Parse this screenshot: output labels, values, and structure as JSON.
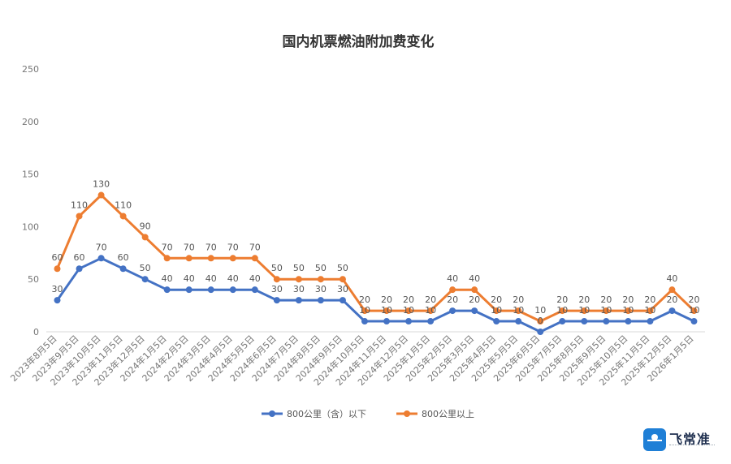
{
  "chart_data": {
    "type": "line",
    "title": "国内机票燃油附加费变化",
    "categories": [
      "2023年8月5日",
      "2023年9月5日",
      "2023年10月5日",
      "2023年11月5日",
      "2023年12月5日",
      "2024年1月5日",
      "2024年2月5日",
      "2024年3月5日",
      "2024年4月5日",
      "2024年5月5日",
      "2024年6月5日",
      "2024年7月5日",
      "2024年8月5日",
      "2024年9月5日",
      "2024年10月5日",
      "2024年11月5日",
      "2024年12月5日",
      "2025年1月5日",
      "2025年2月5日",
      "2025年3月5日",
      "2025年4月5日",
      "2025年5月5日",
      "2025年6月5日",
      "2025年7月5日",
      "2025年8月5日",
      "2025年9月5日",
      "2025年10月5日",
      "2025年11月5日",
      "2025年12月5日",
      "2026年1月5日"
    ],
    "series": [
      {
        "name": "800公里（含）以下",
        "color": "#4472c4",
        "values": [
          30,
          60,
          70,
          60,
          50,
          40,
          40,
          40,
          40,
          40,
          30,
          30,
          30,
          30,
          10,
          10,
          10,
          10,
          20,
          20,
          10,
          10,
          0,
          10,
          10,
          10,
          10,
          10,
          20,
          10
        ]
      },
      {
        "name": "800公里以上",
        "color": "#ed7d31",
        "values": [
          60,
          110,
          130,
          110,
          90,
          70,
          70,
          70,
          70,
          70,
          50,
          50,
          50,
          50,
          20,
          20,
          20,
          20,
          40,
          40,
          20,
          20,
          10,
          20,
          20,
          20,
          20,
          20,
          40,
          20
        ]
      }
    ],
    "yticks": [
      0,
      50,
      100,
      150,
      200,
      250
    ],
    "ylim": [
      0,
      250
    ],
    "grid": false,
    "legend": "bottom"
  },
  "logo": {
    "brand": "飞常准"
  }
}
